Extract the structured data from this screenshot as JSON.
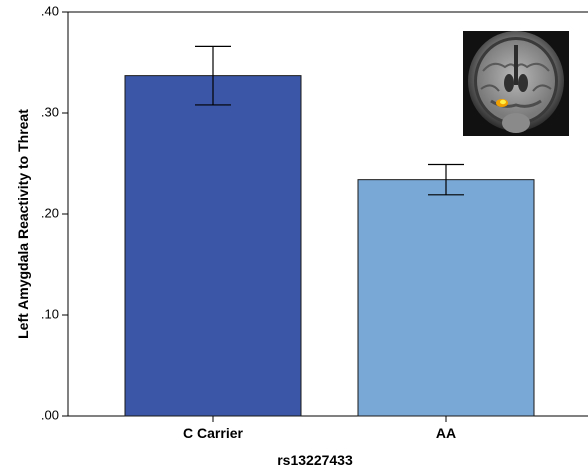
{
  "chart_data": {
    "type": "bar",
    "categories": [
      "C Carrier",
      "AA"
    ],
    "values": [
      0.337,
      0.234
    ],
    "error_bars": [
      {
        "low": 0.308,
        "high": 0.366
      },
      {
        "low": 0.219,
        "high": 0.249
      }
    ],
    "bar_colors": [
      "#3b56a6",
      "#7aa8d6"
    ],
    "xlabel": "rs13227433",
    "ylabel": "Left Amygdala Reactivity to Threat",
    "ylim": [
      0,
      0.4
    ],
    "yticks": [
      {
        "value": 0,
        "label": ".00"
      },
      {
        "value": 0.1,
        "label": ".10"
      },
      {
        "value": 0.2,
        "label": ".20"
      },
      {
        "value": 0.3,
        "label": ".30"
      },
      {
        "value": 0.4,
        "label": ".40"
      }
    ],
    "grid": false,
    "inset": "brain-mri-coronal-slice"
  }
}
